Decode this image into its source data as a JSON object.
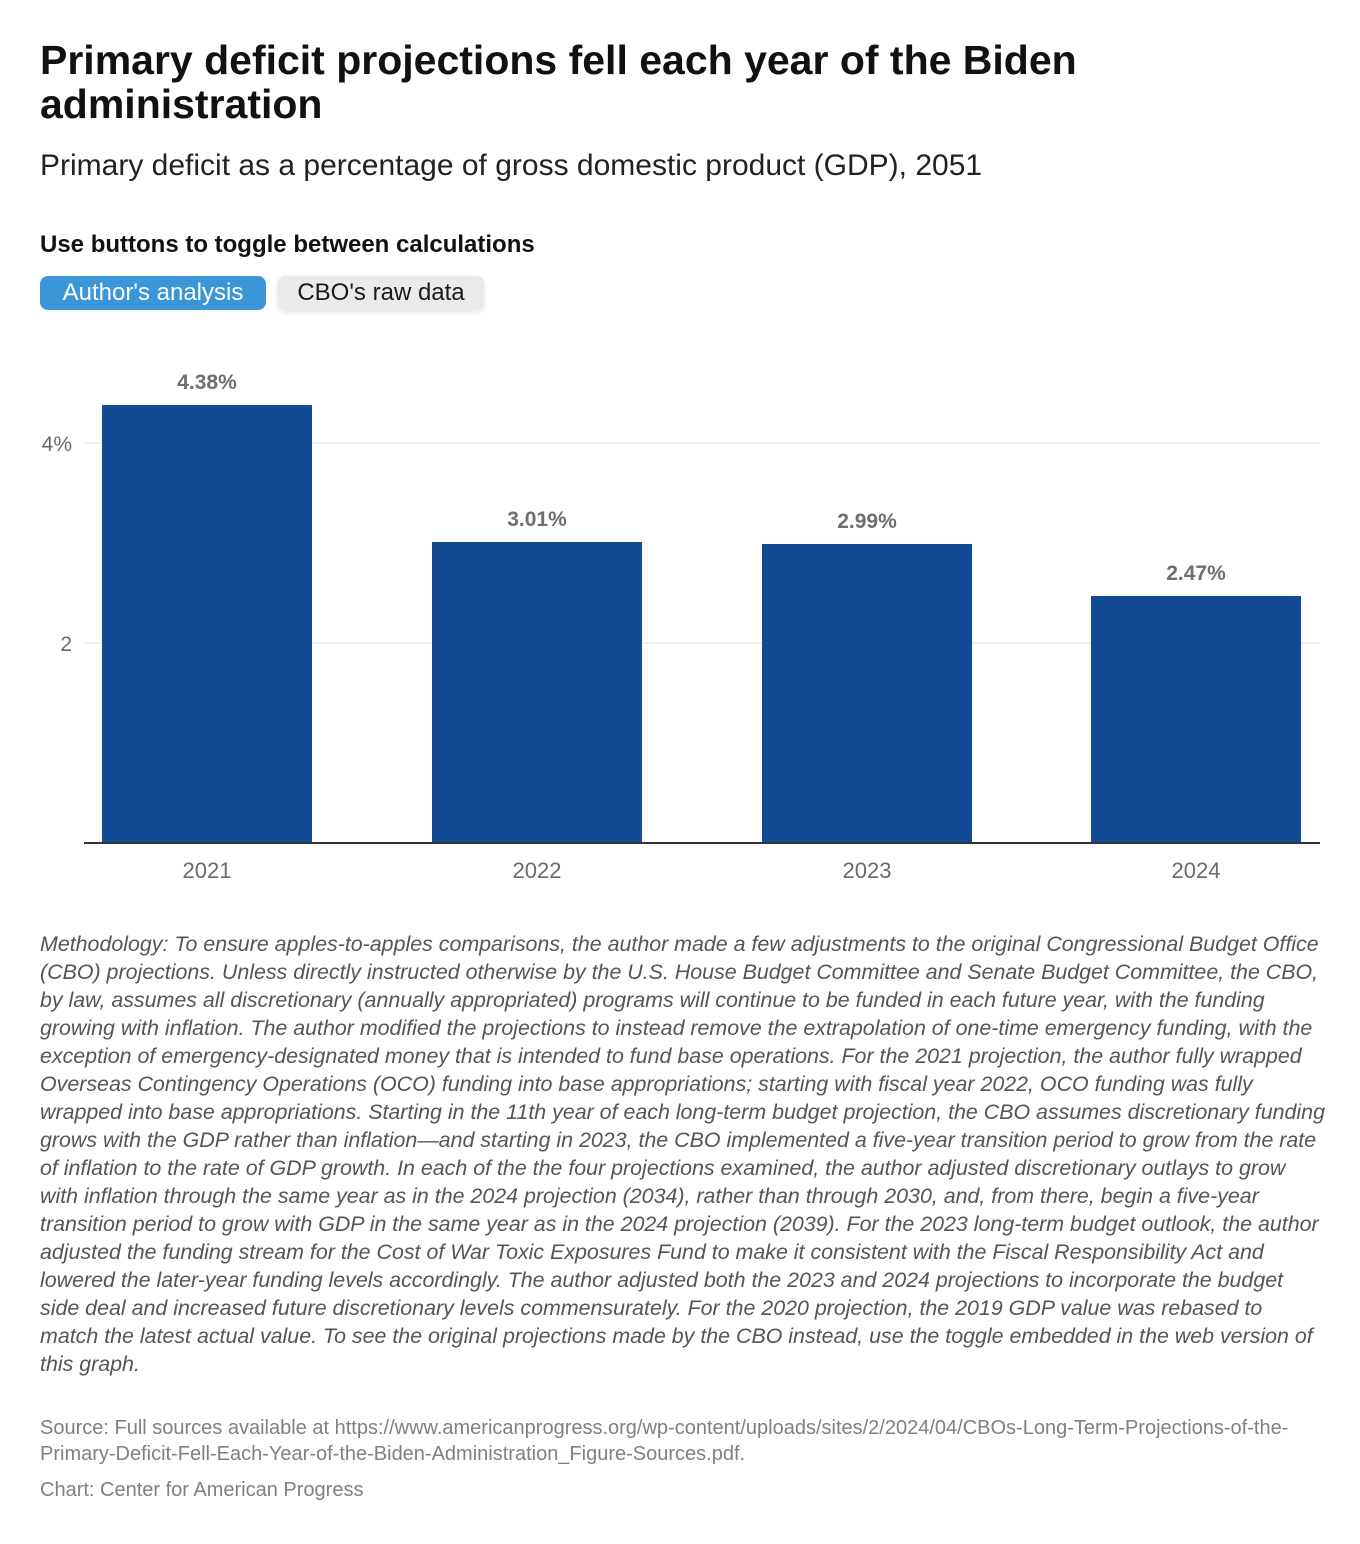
{
  "title": "Primary deficit projections fell each year of the Biden administration",
  "subtitle": "Primary deficit as a percentage of gross domestic product (GDP), 2051",
  "toggle": {
    "label": "Use buttons to toggle between calculations",
    "options": [
      "Author's analysis",
      "CBO's raw data"
    ],
    "selected": "Author's analysis"
  },
  "colors": {
    "bar": "#134a94",
    "active_button": "#3a96d8",
    "inactive_button": "#eaeaea"
  },
  "chart_data": {
    "type": "bar",
    "categories": [
      "2021",
      "2022",
      "2023",
      "2024"
    ],
    "values": [
      4.38,
      3.01,
      2.99,
      2.47
    ],
    "value_labels": [
      "4.38%",
      "3.01%",
      "2.99%",
      "2.47%"
    ],
    "y_ticks": [
      2,
      4
    ],
    "y_tick_labels": [
      "2",
      "4%"
    ],
    "ylim": [
      0,
      4.38
    ],
    "grid": true,
    "title": "",
    "xlabel": "",
    "ylabel": ""
  },
  "methodology": "Methodology: To ensure apples-to-apples comparisons, the author made a few adjustments to the original Congressional Budget Office (CBO) projections. Unless directly instructed otherwise by the U.S. House Budget Committee and Senate Budget Committee, the CBO, by law, assumes all discretionary (annually appropriated) programs will continue to be funded in each future year, with the funding growing with inflation. The author modified the projections to instead remove the extrapolation of one-time emergency funding, with the exception of emergency-designated money that is intended to fund base operations. For the 2021 projection, the author fully wrapped Overseas Contingency Operations (OCO) funding into base appropriations; starting with fiscal year 2022, OCO funding was fully wrapped into base appropriations. Starting in the 11th year of each long-term budget projection, the CBO assumes discretionary funding grows with the GDP rather than inflation—and starting in 2023, the CBO implemented a five-year transition period to grow from the rate of inflation to the rate of GDP growth. In each of the the four projections examined, the author adjusted discretionary outlays to grow with inflation through the same year as in the 2024 projection (2034), rather than through 2030, and, from there, begin a five-year transition period to grow with GDP in the same year as in the 2024 projection (2039). For the 2023 long-term budget outlook, the author adjusted the funding stream for the Cost of War Toxic Exposures Fund to make it consistent with the Fiscal Responsibility Act and lowered the later-year funding levels accordingly. The author adjusted both the 2023 and 2024 projections to incorporate the budget side deal and increased future discretionary levels commensurately. For the 2020 projection, the 2019 GDP value was rebased to match the latest actual value. To see the original projections made by the CBO instead, use the toggle embedded in the web version of this graph.",
  "source": "Source: Full sources available at https://www.americanprogress.org/wp-content/uploads/sites/2/2024/04/CBOs-Long-Term-Projections-of-the-Primary-Deficit-Fell-Each-Year-of-the-Biden-Administration_Figure-Sources.pdf.",
  "credit": "Chart: Center for American Progress"
}
